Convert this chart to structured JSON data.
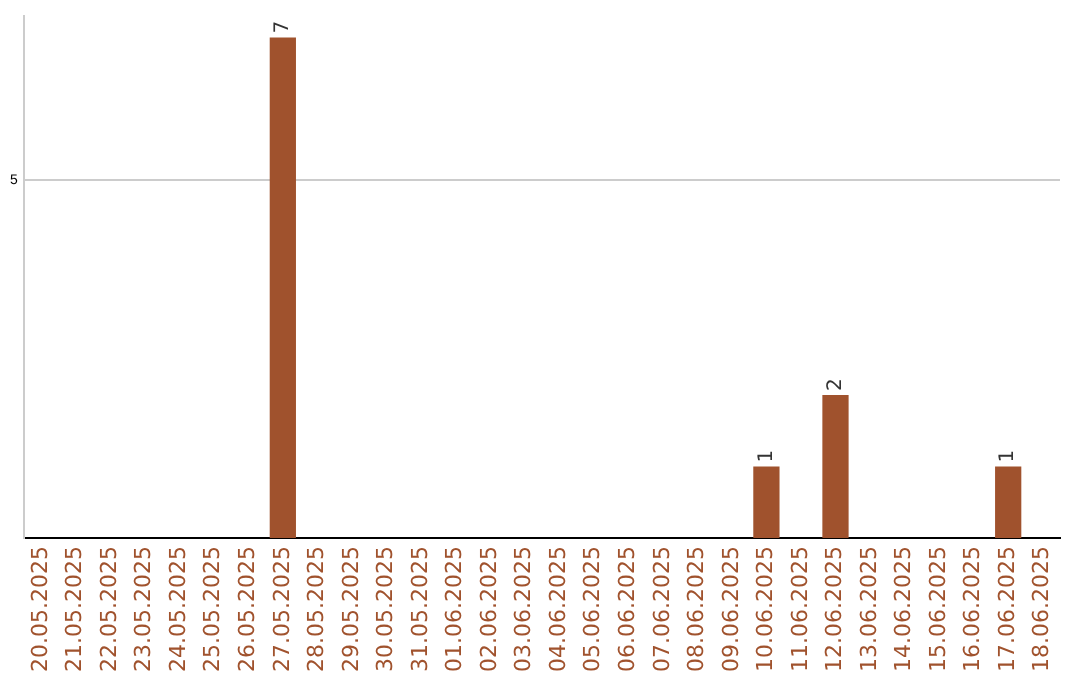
{
  "chart_data": {
    "type": "bar",
    "categories": [
      "20.05.2025",
      "21.05.2025",
      "22.05.2025",
      "23.05.2025",
      "24.05.2025",
      "25.05.2025",
      "26.05.2025",
      "27.05.2025",
      "28.05.2025",
      "29.05.2025",
      "30.05.2025",
      "31.05.2025",
      "01.06.2025",
      "02.06.2025",
      "03.06.2025",
      "04.06.2025",
      "05.06.2025",
      "06.06.2025",
      "07.06.2025",
      "08.06.2025",
      "09.06.2025",
      "10.06.2025",
      "11.06.2025",
      "12.06.2025",
      "13.06.2025",
      "14.06.2025",
      "15.06.2025",
      "16.06.2025",
      "17.06.2025",
      "18.06.2025"
    ],
    "values": [
      0,
      0,
      0,
      0,
      0,
      0,
      0,
      7,
      0,
      0,
      0,
      0,
      0,
      0,
      0,
      0,
      0,
      0,
      0,
      0,
      0,
      1,
      0,
      2,
      0,
      0,
      0,
      0,
      1,
      0
    ],
    "value_labels": [
      null,
      null,
      null,
      null,
      null,
      null,
      null,
      "7",
      null,
      null,
      null,
      null,
      null,
      null,
      null,
      null,
      null,
      null,
      null,
      null,
      null,
      "1",
      null,
      "2",
      null,
      null,
      null,
      null,
      "1",
      null
    ],
    "color": "#a0522d",
    "ylim": [
      0,
      7.3
    ],
    "yticks": [
      5
    ],
    "grid": "y",
    "legend": false
  }
}
